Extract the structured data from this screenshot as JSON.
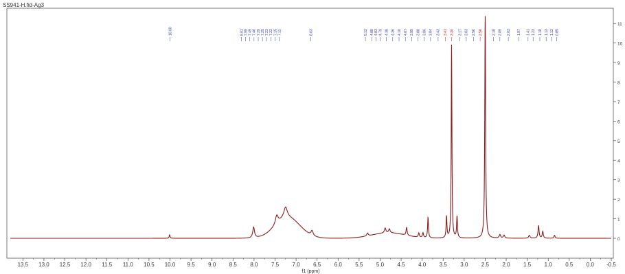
{
  "title": "SS941-H.fid-Ag3",
  "chart_data": {
    "type": "line",
    "title": "SS941-H.fid-Ag3",
    "xlabel": "f1 (ppm)",
    "ylabel": "",
    "x_reversed": true,
    "xlim": [
      13.8,
      -0.5
    ],
    "ylim": [
      -0.5,
      11.5
    ],
    "x_ticks": [
      13.5,
      13.0,
      12.5,
      12.0,
      11.5,
      11.0,
      10.5,
      10.0,
      9.5,
      9.0,
      8.5,
      8.0,
      7.5,
      7.0,
      6.5,
      6.0,
      5.5,
      5.0,
      4.5,
      4.0,
      3.5,
      3.0,
      2.5,
      2.0,
      1.5,
      1.0,
      0.5,
      0.0,
      -0.5
    ],
    "x_tick_labels": [
      "13.5",
      "13.0",
      "12.5",
      "12.0",
      "11.5",
      "11.0",
      "10.5",
      "10.0",
      "9.5",
      "9.0",
      "8.5",
      "8.0",
      "7.5",
      "7.0",
      "6.5",
      "6.0",
      "5.5",
      "5.0",
      "4.5",
      "4.0",
      "3.5",
      "3.0",
      "2.5",
      "2.0",
      "1.5",
      "1.0",
      "0.5",
      "0.0",
      "-0.5"
    ],
    "y_ticks": [
      0,
      1,
      2,
      3,
      4,
      5,
      6,
      7,
      8,
      9,
      10,
      11
    ],
    "y_tick_labels": [
      "0",
      "1",
      "2",
      "3",
      "4",
      "5",
      "6",
      "7",
      "8",
      "9",
      "10",
      "11"
    ],
    "line_color": "#8b1a1a",
    "label_color": "#2233aa",
    "highlight_label_color": "#cc1111",
    "peaks": [
      {
        "ppm": 10.01,
        "height": 0.18,
        "width": 0.012
      },
      {
        "ppm": 8.01,
        "height": 0.55,
        "width": 0.025
      },
      {
        "ppm": 7.46,
        "height": 0.45,
        "width": 0.04
      },
      {
        "ppm": 7.25,
        "height": 0.55,
        "width": 0.05
      },
      {
        "ppm": 6.62,
        "height": 0.25,
        "width": 0.03
      },
      {
        "ppm": 5.3,
        "height": 0.15,
        "width": 0.02
      },
      {
        "ppm": 4.88,
        "height": 0.25,
        "width": 0.02
      },
      {
        "ppm": 4.78,
        "height": 0.2,
        "width": 0.02
      },
      {
        "ppm": 4.37,
        "height": 0.4,
        "width": 0.015
      },
      {
        "ppm": 4.08,
        "height": 0.22,
        "width": 0.015
      },
      {
        "ppm": 3.98,
        "height": 0.25,
        "width": 0.015
      },
      {
        "ppm": 3.86,
        "height": 1.05,
        "width": 0.012
      },
      {
        "ppm": 3.42,
        "height": 1.1,
        "width": 0.012
      },
      {
        "ppm": 3.3,
        "height": 9.9,
        "width": 0.01
      },
      {
        "ppm": 3.17,
        "height": 1.1,
        "width": 0.012
      },
      {
        "ppm": 2.5,
        "height": 11.4,
        "width": 0.012
      },
      {
        "ppm": 2.15,
        "height": 0.18,
        "width": 0.02
      },
      {
        "ppm": 2.05,
        "height": 0.15,
        "width": 0.02
      },
      {
        "ppm": 1.45,
        "height": 0.15,
        "width": 0.02
      },
      {
        "ppm": 1.23,
        "height": 0.65,
        "width": 0.015
      },
      {
        "ppm": 1.13,
        "height": 0.35,
        "width": 0.015
      },
      {
        "ppm": 0.85,
        "height": 0.15,
        "width": 0.015
      }
    ],
    "broad_humps": [
      {
        "ppm": 7.2,
        "height": 1.05,
        "width": 0.42
      },
      {
        "ppm": 4.8,
        "height": 0.28,
        "width": 0.55
      }
    ],
    "peak_labels": [
      {
        "ppm": 10.0,
        "text": "10.00",
        "highlight": false
      },
      {
        "ppm": 8.3,
        "text": "8.01",
        "highlight": false
      },
      {
        "ppm": 8.2,
        "text": "7.99",
        "highlight": false
      },
      {
        "ppm": 8.1,
        "text": "7.49",
        "highlight": false
      },
      {
        "ppm": 8.0,
        "text": "7.46",
        "highlight": false
      },
      {
        "ppm": 7.9,
        "text": "7.29",
        "highlight": false
      },
      {
        "ppm": 7.8,
        "text": "7.25",
        "highlight": false
      },
      {
        "ppm": 7.7,
        "text": "7.23",
        "highlight": false
      },
      {
        "ppm": 7.6,
        "text": "7.22",
        "highlight": false
      },
      {
        "ppm": 7.5,
        "text": "7.15",
        "highlight": false
      },
      {
        "ppm": 7.4,
        "text": "7.11",
        "highlight": false
      },
      {
        "ppm": 6.65,
        "text": "6.63",
        "highlight": false
      },
      {
        "ppm": 5.35,
        "text": "5.12",
        "highlight": false
      },
      {
        "ppm": 5.2,
        "text": "4.88",
        "highlight": false
      },
      {
        "ppm": 5.1,
        "text": "4.83",
        "highlight": false
      },
      {
        "ppm": 5.0,
        "text": "4.79",
        "highlight": false
      },
      {
        "ppm": 4.85,
        "text": "4.38",
        "highlight": false
      },
      {
        "ppm": 4.7,
        "text": "4.36",
        "highlight": false
      },
      {
        "ppm": 4.55,
        "text": "4.10",
        "highlight": false
      },
      {
        "ppm": 4.4,
        "text": "4.07",
        "highlight": false
      },
      {
        "ppm": 4.25,
        "text": "3.99",
        "highlight": false
      },
      {
        "ppm": 4.1,
        "text": "3.88",
        "highlight": false
      },
      {
        "ppm": 3.95,
        "text": "3.86",
        "highlight": false
      },
      {
        "ppm": 3.8,
        "text": "3.84",
        "highlight": false
      },
      {
        "ppm": 3.62,
        "text": "3.43",
        "highlight": false
      },
      {
        "ppm": 3.45,
        "text": "3.41",
        "highlight": true
      },
      {
        "ppm": 3.3,
        "text": "3.30",
        "highlight": true
      },
      {
        "ppm": 3.1,
        "text": "3.17",
        "highlight": false
      },
      {
        "ppm": 2.95,
        "text": "3.03",
        "highlight": false
      },
      {
        "ppm": 2.78,
        "text": "2.56",
        "highlight": false
      },
      {
        "ppm": 2.62,
        "text": "2.50",
        "highlight": true
      },
      {
        "ppm": 2.3,
        "text": "2.18",
        "highlight": false
      },
      {
        "ppm": 2.15,
        "text": "2.09",
        "highlight": false
      },
      {
        "ppm": 1.95,
        "text": "2.03",
        "highlight": false
      },
      {
        "ppm": 1.7,
        "text": "1.97",
        "highlight": false
      },
      {
        "ppm": 1.48,
        "text": "1.41",
        "highlight": false
      },
      {
        "ppm": 1.36,
        "text": "1.23",
        "highlight": false
      },
      {
        "ppm": 1.2,
        "text": "1.18",
        "highlight": false
      },
      {
        "ppm": 1.05,
        "text": "1.13",
        "highlight": false
      },
      {
        "ppm": 0.92,
        "text": "1.12",
        "highlight": false
      },
      {
        "ppm": 0.8,
        "text": "0.85",
        "highlight": false
      }
    ]
  }
}
